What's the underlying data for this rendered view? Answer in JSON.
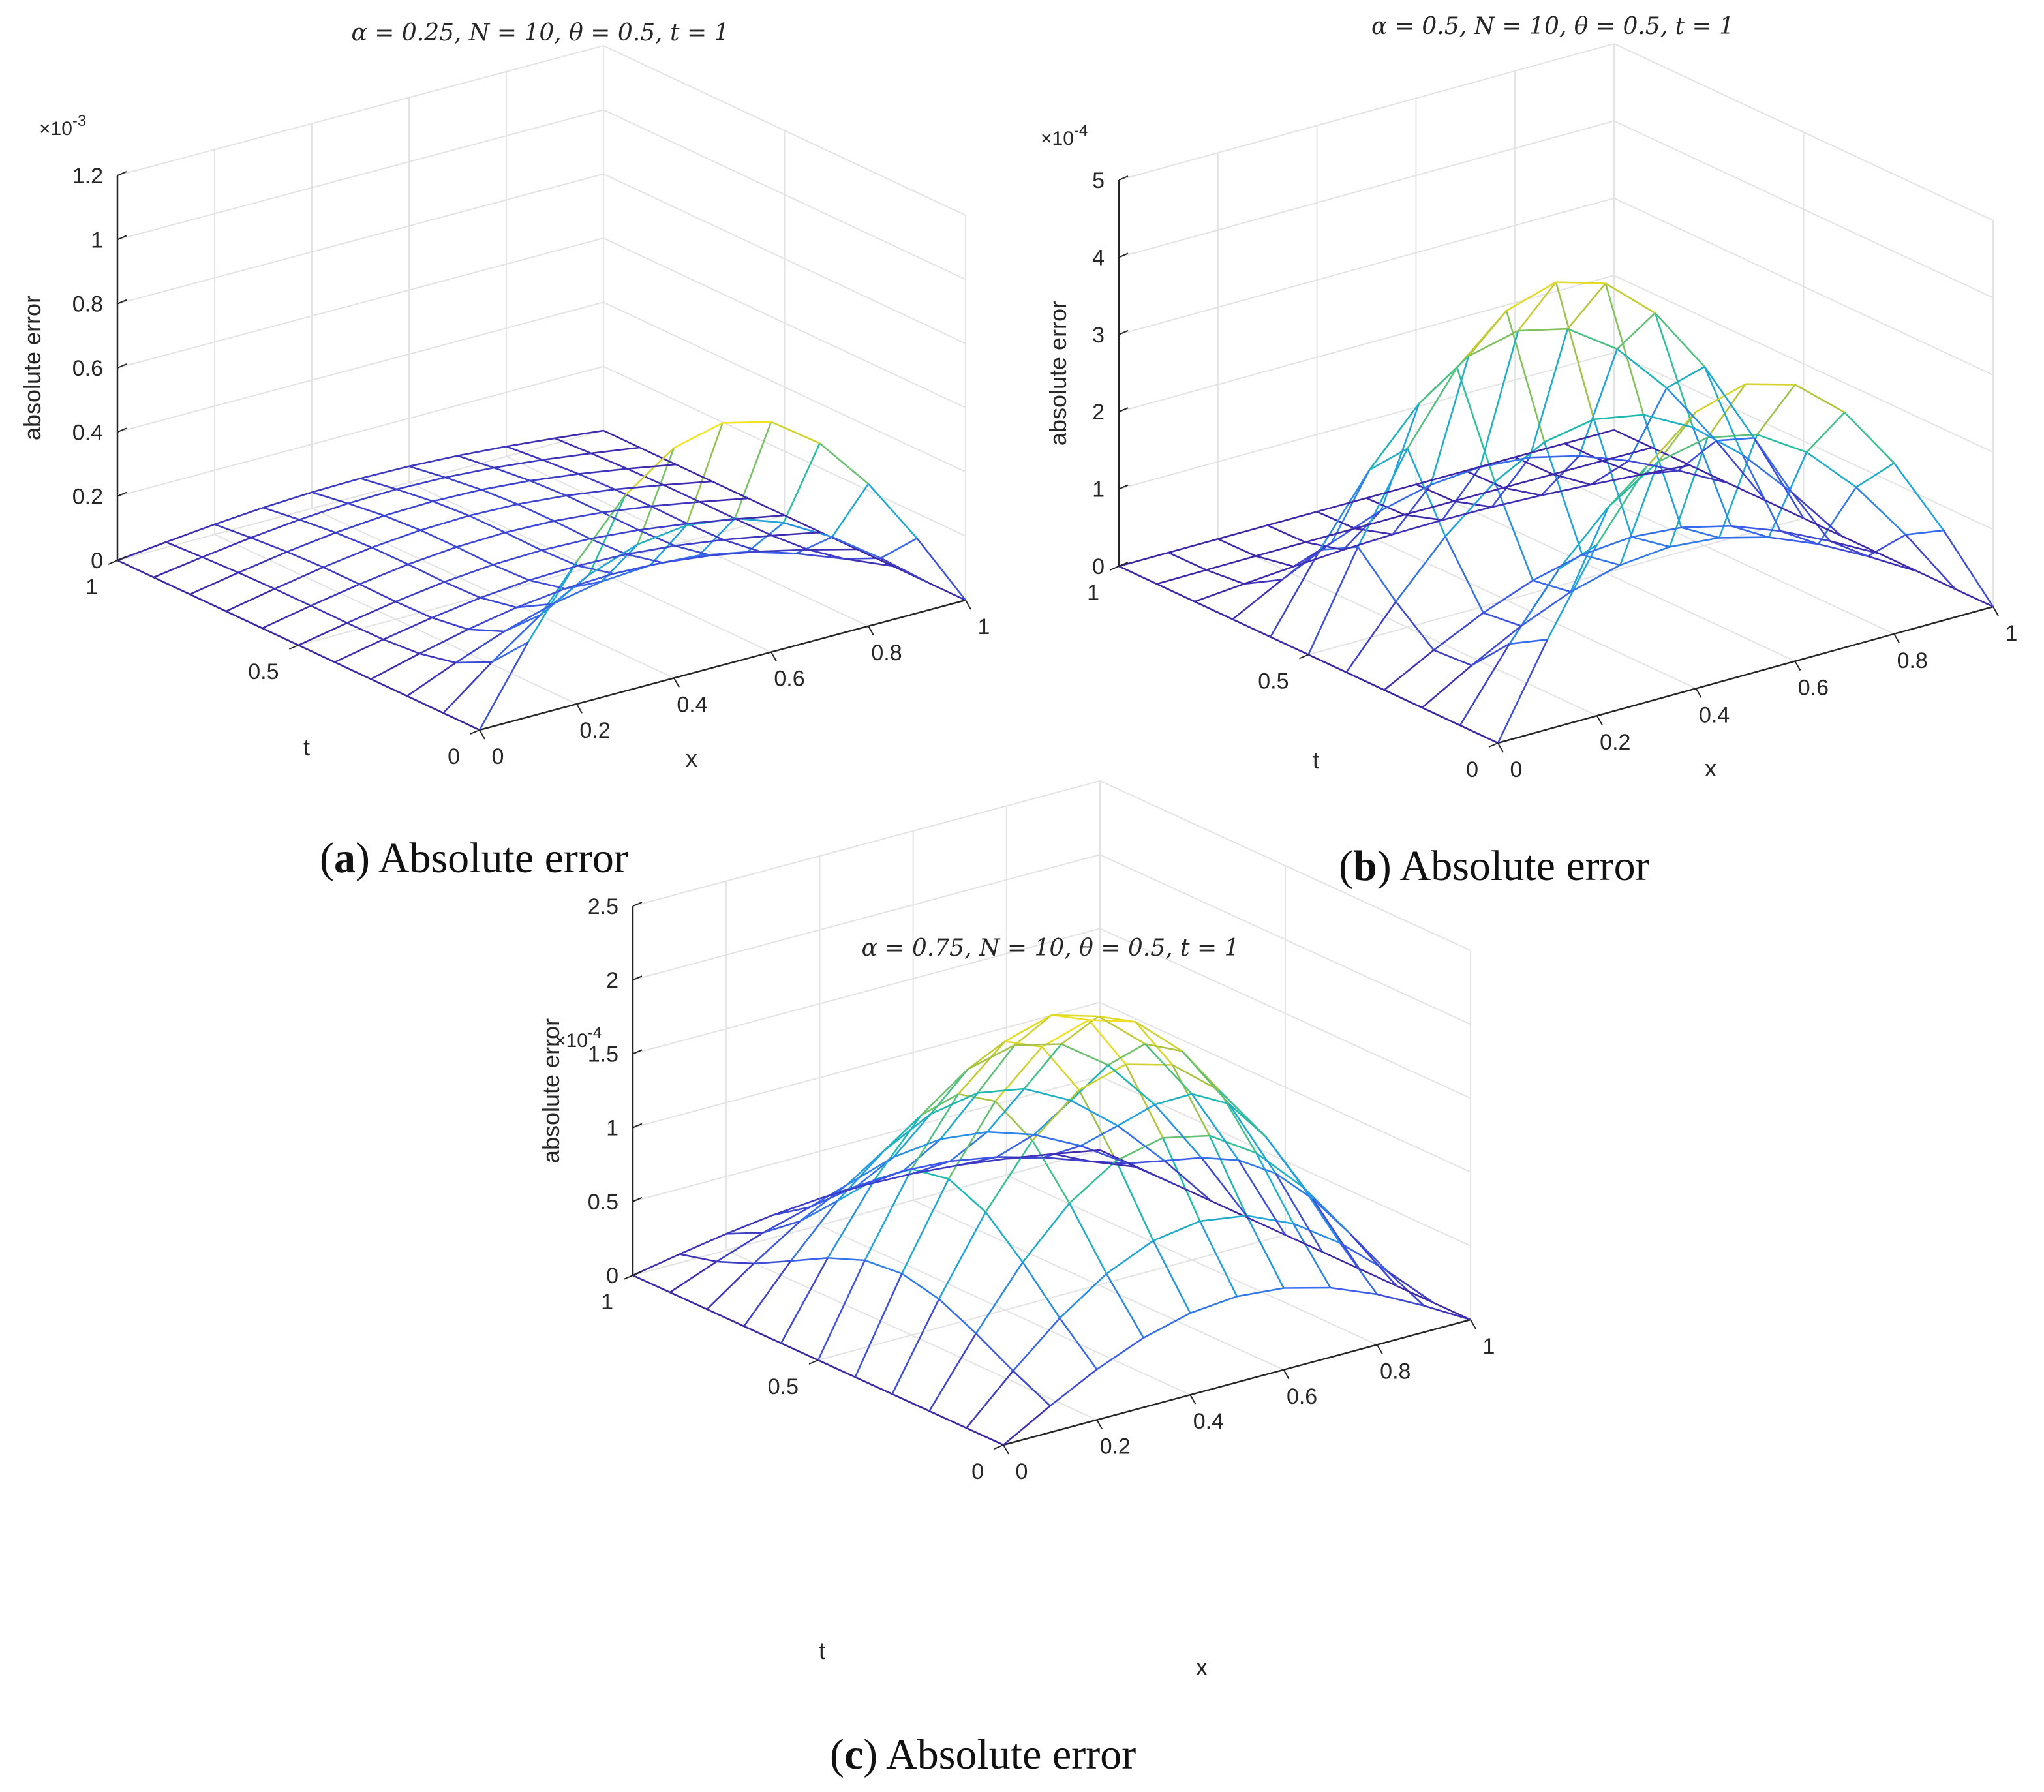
{
  "figure": {
    "captions": [
      {
        "letter": "a",
        "text": " Absolute error"
      },
      {
        "letter": "b",
        "text": " Absolute error"
      },
      {
        "letter": "c",
        "text": " Absolute error"
      }
    ]
  },
  "chart_data": [
    {
      "type": "surface-mesh",
      "title": "α = 0.25, N = 10, θ = 0.5, t = 1",
      "xlabel": "x",
      "ylabel": "t",
      "zlabel": "absolute error",
      "z_exponent_label": "×10",
      "z_exponent": "-3",
      "xlim": [
        0,
        1
      ],
      "ylim": [
        0,
        1
      ],
      "zlim": [
        0,
        1.2
      ],
      "x_ticks": [
        "0",
        "0.2",
        "0.4",
        "0.6",
        "0.8",
        "1"
      ],
      "y_ticks": [
        "0",
        "0.5",
        "1"
      ],
      "z_ticks": [
        "0",
        "0.2",
        "0.4",
        "0.6",
        "0.8",
        "1",
        "1.2"
      ],
      "peak_value": 0.75,
      "surface_shape": "peak at t = 0, decays rapidly with t",
      "grid": true,
      "colormap": "parula"
    },
    {
      "type": "surface-mesh",
      "title": "α = 0.5, N = 10, θ = 0.5, t = 1",
      "xlabel": "x",
      "ylabel": "t",
      "zlabel": "absolute error",
      "z_exponent_label": "×10",
      "z_exponent": "-4",
      "xlim": [
        0,
        1
      ],
      "ylim": [
        0,
        1
      ],
      "zlim": [
        0,
        5
      ],
      "x_ticks": [
        "0",
        "0.2",
        "0.4",
        "0.6",
        "0.8",
        "1"
      ],
      "y_ticks": [
        "0",
        "0.5",
        "1"
      ],
      "z_ticks": [
        "0",
        "1",
        "2",
        "3",
        "4",
        "5"
      ],
      "peak_value": 4.1,
      "surface_shape": "two ridges, at t = 0 and t ≈ 0.5",
      "grid": true,
      "colormap": "parula"
    },
    {
      "type": "surface-mesh",
      "title": "α = 0.75, N = 10, θ = 0.5, t = 1",
      "xlabel": "x",
      "ylabel": "t",
      "zlabel": "absolute error",
      "z_exponent_label": "×10",
      "z_exponent": "-4",
      "xlim": [
        0,
        1
      ],
      "ylim": [
        0,
        1
      ],
      "zlim": [
        0,
        2.5
      ],
      "x_ticks": [
        "0",
        "0.2",
        "0.4",
        "0.6",
        "0.8",
        "1"
      ],
      "y_ticks": [
        "0",
        "0.5",
        "1"
      ],
      "z_ticks": [
        "0",
        "0.5",
        "1",
        "1.5",
        "2",
        "2.5"
      ],
      "peak_value": 2.0,
      "surface_shape": "single broad hump peaking at t ≈ 0.4",
      "grid": true,
      "colormap": "parula"
    }
  ]
}
